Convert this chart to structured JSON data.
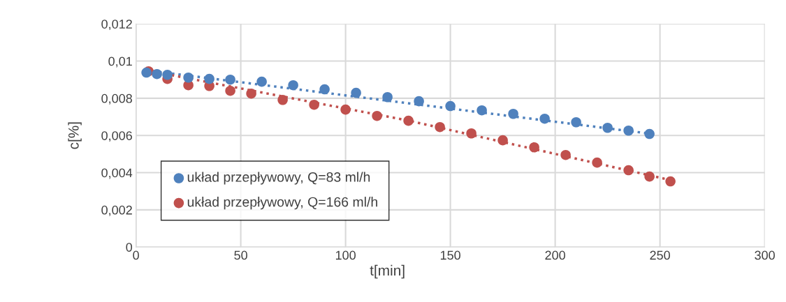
{
  "chart_data": {
    "type": "scatter",
    "xlabel": "t[min]",
    "ylabel": "c[%]",
    "xlim": [
      0,
      300
    ],
    "xticks": [
      0,
      50,
      100,
      150,
      200,
      250,
      300
    ],
    "ylim": [
      0,
      0.012
    ],
    "yticks": [
      0,
      {
        "value": 0.002,
        "label": "0,002"
      },
      {
        "value": 0.004,
        "label": "0,004"
      },
      {
        "value": 0.006,
        "label": "0,006"
      },
      {
        "value": 0.008,
        "label": "0,008"
      },
      {
        "value": 0.01,
        "label": "0,01"
      },
      {
        "value": 0.012,
        "label": "0,012"
      }
    ],
    "grid": true,
    "legend": "bottom left",
    "marker": "circle",
    "series": [
      {
        "name": "układ przepływowy, Q=83 ml/h",
        "color": "#4f81bd",
        "x": [
          5,
          10,
          15,
          25,
          35,
          45,
          60,
          75,
          90,
          105,
          120,
          135,
          150,
          165,
          180,
          195,
          210,
          225,
          235,
          245
        ],
        "values": [
          0.00938,
          0.0093,
          0.00926,
          0.00911,
          0.00904,
          0.009,
          0.00889,
          0.0087,
          0.00848,
          0.00829,
          0.00806,
          0.00784,
          0.00758,
          0.00735,
          0.00716,
          0.0069,
          0.00671,
          0.00641,
          0.00626,
          0.00608
        ]
      },
      {
        "name": "układ przepływowy, Q=166 ml/h",
        "color": "#c0504d",
        "x": [
          6,
          15,
          25,
          35,
          45,
          55,
          70,
          85,
          100,
          115,
          130,
          145,
          160,
          175,
          190,
          205,
          220,
          235,
          245,
          255
        ],
        "values": [
          0.00945,
          0.00904,
          0.0087,
          0.00866,
          0.0084,
          0.00825,
          0.00791,
          0.00765,
          0.00739,
          0.00705,
          0.00679,
          0.00645,
          0.00611,
          0.00574,
          0.00536,
          0.00495,
          0.00454,
          0.00413,
          0.00379,
          0.00353
        ]
      },
      {
        "type": "line",
        "line_style": "dotted",
        "marker": "none",
        "color": "#4f81bd",
        "x": [
          5,
          245
        ],
        "values": [
          0.0095,
          0.0061
        ]
      },
      {
        "type": "line",
        "line_style": "dotted",
        "marker": "none",
        "color": "#c0504d",
        "x": [
          5,
          130,
          255
        ],
        "values": [
          0.0095,
          0.0068,
          0.0036
        ]
      }
    ]
  }
}
